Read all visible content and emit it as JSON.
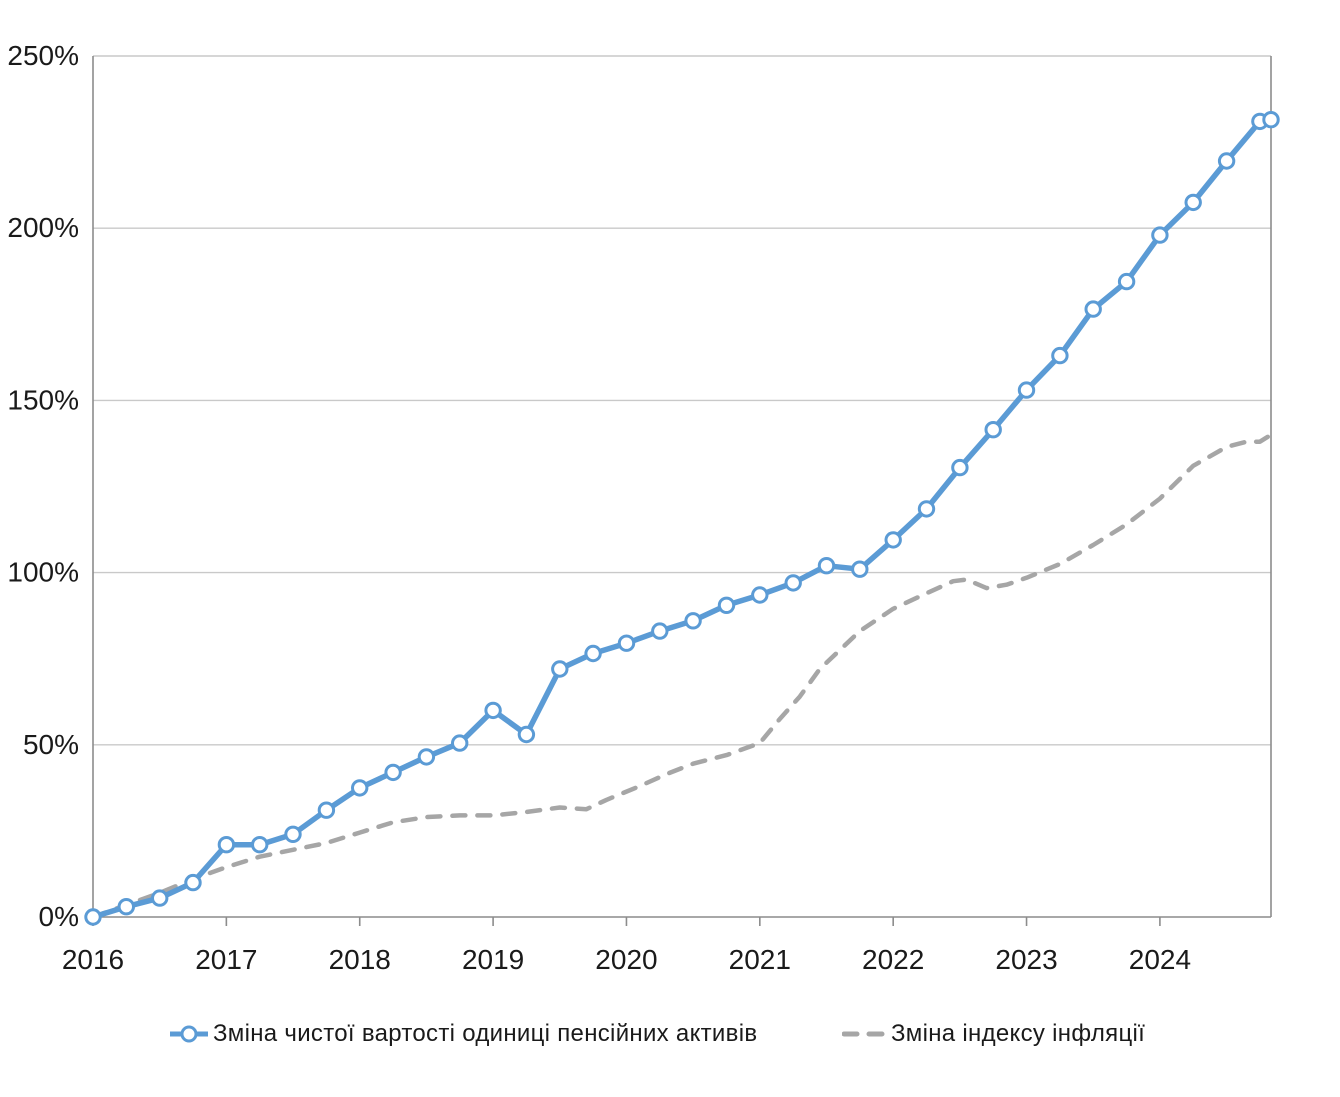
{
  "chart_data": {
    "type": "line",
    "title": "",
    "xlabel": "",
    "ylabel": "",
    "grid": "horizontal",
    "legend_position": "bottom",
    "x_axis": {
      "range": [
        2016,
        2024.833
      ],
      "tick_values": [
        2016,
        2017,
        2018,
        2019,
        2020,
        2021,
        2022,
        2023,
        2024
      ],
      "tick_labels": [
        "2016",
        "2017",
        "2018",
        "2019",
        "2020",
        "2021",
        "2022",
        "2023",
        "2024"
      ]
    },
    "y_axis": {
      "range": [
        0,
        250
      ],
      "tick_values": [
        0,
        50,
        100,
        150,
        200,
        250
      ],
      "tick_labels": [
        "0%",
        "50%",
        "100%",
        "150%",
        "200%",
        "250%"
      ]
    },
    "series": [
      {
        "name": "Зміна чистої вартості одиниці пенсійних активів",
        "color": "#5B9BD5",
        "style": "solid",
        "marker": "open-circle",
        "x": [
          2016,
          2016.25,
          2016.5,
          2016.75,
          2017,
          2017.25,
          2017.5,
          2017.75,
          2018,
          2018.25,
          2018.5,
          2018.75,
          2019,
          2019.25,
          2019.5,
          2019.75,
          2020,
          2020.25,
          2020.5,
          2020.75,
          2021,
          2021.25,
          2021.5,
          2021.75,
          2022,
          2022.25,
          2022.5,
          2022.75,
          2023,
          2023.25,
          2023.5,
          2023.75,
          2024,
          2024.25,
          2024.5,
          2024.75,
          2024.833
        ],
        "values": [
          0,
          3,
          5.5,
          10,
          21,
          21,
          24,
          31,
          37.5,
          42,
          46.5,
          50.5,
          60,
          53,
          72,
          76.5,
          79.5,
          83,
          86,
          90.5,
          93.5,
          97,
          102,
          101,
          109.5,
          118.5,
          130.5,
          141.5,
          153,
          163,
          176.5,
          184.5,
          198,
          207.5,
          219.5,
          231,
          231.5
        ]
      },
      {
        "name": "Зміна індексу інфляції",
        "color": "#A6A6A6",
        "style": "dashed",
        "marker": "none",
        "x": [
          2016,
          2016.25,
          2016.5,
          2016.75,
          2017,
          2017.25,
          2017.5,
          2017.75,
          2018,
          2018.25,
          2018.5,
          2018.75,
          2019,
          2019.25,
          2019.5,
          2019.7,
          2019.85,
          2020.1,
          2020.3,
          2020.5,
          2020.75,
          2021,
          2021.15,
          2021.3,
          2021.45,
          2021.6,
          2021.75,
          2022,
          2022.25,
          2022.45,
          2022.55,
          2022.7,
          2022.85,
          2023,
          2023.25,
          2023.5,
          2023.75,
          2024,
          2024.25,
          2024.5,
          2024.65,
          2024.75,
          2024.833
        ],
        "values": [
          0,
          3.5,
          7,
          11,
          14.5,
          17.5,
          19.5,
          21.5,
          24.5,
          27.5,
          29,
          29.5,
          29.5,
          30.5,
          31.8,
          31.3,
          34,
          38,
          41.5,
          44.5,
          47,
          50.5,
          57.5,
          64,
          72,
          77.5,
          83,
          89.5,
          94,
          97.5,
          98,
          95.5,
          96.5,
          98.5,
          102.5,
          108,
          114,
          121.5,
          131,
          136.5,
          138,
          138,
          140
        ]
      }
    ]
  },
  "colors": {
    "axis": "#8C8C8C",
    "grid": "#C9C9C9",
    "tick_text": "#1a1a1a"
  }
}
